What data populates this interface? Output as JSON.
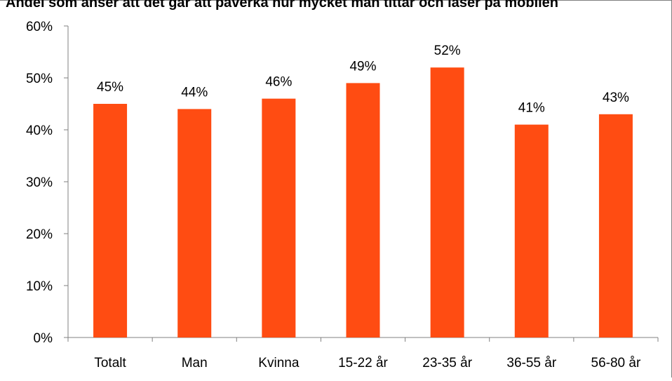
{
  "chart_data": {
    "type": "bar",
    "title": "Andel som anser att det går att påverka hur mycket man tittar och läser på mobilen",
    "categories": [
      "Totalt",
      "Man",
      "Kvinna",
      "15-22 år",
      "23-35 år",
      "36-55 år",
      "56-80 år"
    ],
    "values": [
      45,
      44,
      46,
      49,
      52,
      41,
      43
    ],
    "data_labels": [
      "45%",
      "44%",
      "46%",
      "49%",
      "52%",
      "41%",
      "43%"
    ],
    "y_ticks": [
      "0%",
      "10%",
      "20%",
      "30%",
      "40%",
      "50%",
      "60%"
    ],
    "ylim": [
      0,
      60
    ],
    "xlabel": "",
    "ylabel": "",
    "grid": false,
    "legend": "none",
    "bar_color": "#ff4c12"
  }
}
